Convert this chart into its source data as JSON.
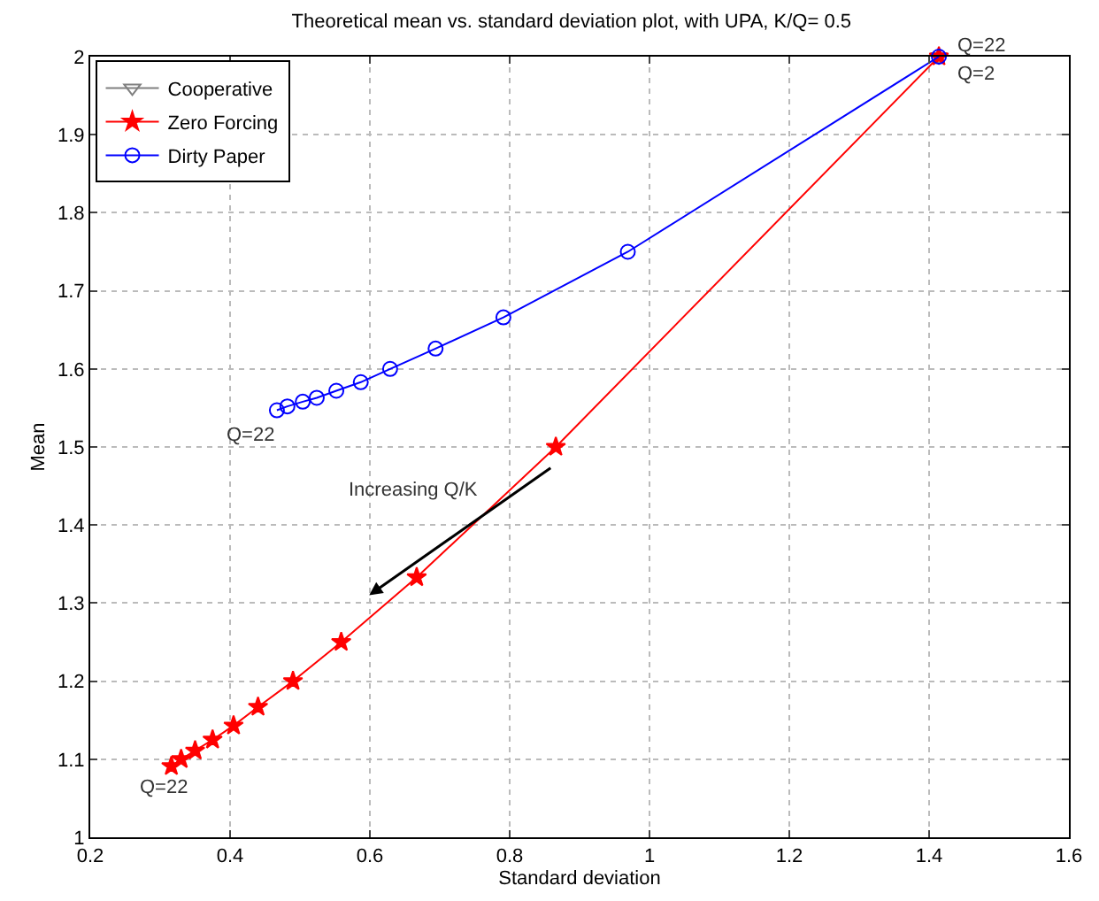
{
  "chart_data": {
    "type": "line",
    "title": "Theoretical mean vs. standard deviation plot, with UPA, K/Q= 0.5",
    "xlabel": "Standard deviation",
    "ylabel": "Mean",
    "series": [
      {
        "name": "Cooperative",
        "color": "#808080",
        "marker": "triangle",
        "x": [
          1.414
        ],
        "values": [
          2.0
        ]
      },
      {
        "name": "Zero Forcing",
        "color": "#ff0000",
        "marker": "star",
        "x": [
          1.414,
          0.866,
          0.667,
          0.559,
          0.49,
          0.44,
          0.405,
          0.375,
          0.35,
          0.33,
          0.316
        ],
        "values": [
          2.0,
          1.5,
          1.333,
          1.25,
          1.2,
          1.167,
          1.143,
          1.125,
          1.111,
          1.1,
          1.091
        ]
      },
      {
        "name": "Dirty Paper",
        "color": "#0000ff",
        "marker": "circle",
        "x": [
          1.414,
          0.969,
          0.791,
          0.694,
          0.629,
          0.587,
          0.552,
          0.524,
          0.504,
          0.482,
          0.467
        ],
        "values": [
          2.0,
          1.75,
          1.666,
          1.626,
          1.6,
          1.583,
          1.572,
          1.563,
          1.558,
          1.552,
          1.547
        ]
      }
    ],
    "xlim": [
      0.2,
      1.6
    ],
    "xticks": [
      0.2,
      0.4,
      0.6,
      0.8,
      1,
      1.2,
      1.4,
      1.6
    ],
    "ylim": [
      1,
      2
    ],
    "yticks": [
      1,
      1.1,
      1.2,
      1.3,
      1.4,
      1.5,
      1.6,
      1.7,
      1.8,
      1.9,
      2
    ],
    "annotations": [
      {
        "text": "Q=22",
        "x": 1.414,
        "y": 2.0
      },
      {
        "text": "Q=2",
        "x": 1.414,
        "y": 2.0
      },
      {
        "text": "Q=22",
        "x": 0.467,
        "y": 1.547
      },
      {
        "text": "Q=22",
        "x": 0.316,
        "y": 1.091
      },
      "Increasing Q/K"
    ],
    "grid": true,
    "legend": "top left",
    "line_style": "solid"
  }
}
